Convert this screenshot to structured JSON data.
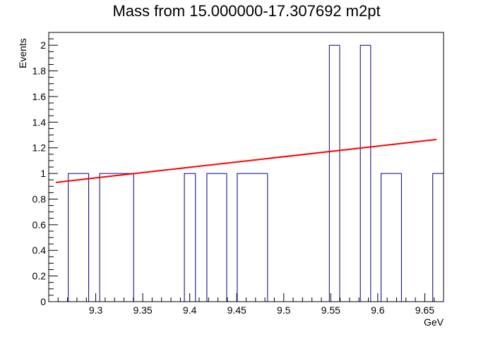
{
  "chart_data": {
    "type": "bar",
    "title": "Mass from 15.000000-17.307692 m2pt",
    "xlabel": "GeV",
    "ylabel": "Events",
    "xlim": [
      9.25,
      9.67
    ],
    "ylim": [
      0,
      2.1
    ],
    "grid": false,
    "legend": "none",
    "x_ticks": [
      9.3,
      9.35,
      9.4,
      9.45,
      9.5,
      9.55,
      9.6,
      9.65
    ],
    "x_tick_labels": [
      "9.3",
      "9.35",
      "9.4",
      "9.45",
      "9.5",
      "9.55",
      "9.6",
      "9.65"
    ],
    "y_ticks": [
      0,
      0.2,
      0.4,
      0.6,
      0.8,
      1,
      1.2,
      1.4,
      1.6,
      1.8,
      2
    ],
    "y_tick_labels": [
      "0",
      "0.2",
      "0.4",
      "0.6",
      "0.8",
      "1",
      "1.2",
      "1.4",
      "1.6",
      "1.8",
      "2"
    ],
    "histogram": {
      "bin_edges": [
        9.2708,
        9.2925,
        9.3042,
        9.3403,
        9.3943,
        9.4061,
        9.4182,
        9.4393,
        9.4505,
        9.4828,
        9.5485,
        9.5595,
        9.5815,
        9.5925,
        9.6035,
        9.6252,
        9.6585,
        9.67
      ],
      "counts": [
        1,
        0,
        1,
        0,
        1,
        0,
        1,
        0,
        1,
        0,
        2,
        0,
        2,
        0,
        1,
        0,
        1
      ]
    },
    "series": [
      {
        "type": "line",
        "x": [
          9.2575,
          9.6625
        ],
        "y": [
          0.93,
          1.265
        ]
      }
    ],
    "colors": {
      "histogram": "#000080",
      "fit": "#ff0000",
      "axes": "#000000"
    }
  }
}
